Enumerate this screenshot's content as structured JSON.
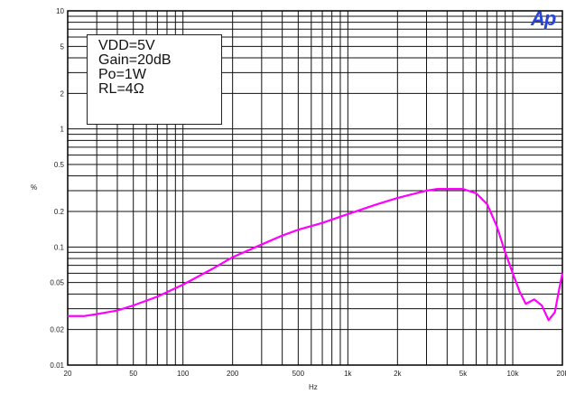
{
  "chart_data": {
    "type": "line",
    "title": "",
    "xlabel": "Hz",
    "ylabel": "%",
    "x_scale": "log",
    "y_scale": "log",
    "xlim": [
      20,
      20000
    ],
    "ylim": [
      0.01,
      10
    ],
    "grid": true,
    "x_ticks": [
      20,
      50,
      100,
      200,
      500,
      1000,
      2000,
      5000,
      10000,
      20000
    ],
    "x_tick_labels": [
      "20",
      "50",
      "100",
      "200",
      "500",
      "1k",
      "2k",
      "5k",
      "10k",
      "20k"
    ],
    "y_ticks": [
      0.01,
      0.02,
      0.05,
      0.1,
      0.2,
      0.5,
      1,
      2,
      5,
      10
    ],
    "y_tick_labels": [
      "0.01",
      "0.02",
      "0.05",
      "0.1",
      "0.2",
      "0.5",
      "1",
      "2",
      "5",
      "10"
    ],
    "annotation_lines": [
      "VDD=5V",
      "Gain=20dB",
      "Po=1W",
      "RL=4Ω"
    ],
    "series": [
      {
        "color": "#ff00ff",
        "points": [
          [
            20,
            0.026
          ],
          [
            25,
            0.026
          ],
          [
            30,
            0.027
          ],
          [
            40,
            0.029
          ],
          [
            50,
            0.032
          ],
          [
            70,
            0.038
          ],
          [
            100,
            0.048
          ],
          [
            150,
            0.065
          ],
          [
            200,
            0.082
          ],
          [
            300,
            0.105
          ],
          [
            400,
            0.125
          ],
          [
            500,
            0.14
          ],
          [
            700,
            0.16
          ],
          [
            1000,
            0.19
          ],
          [
            1500,
            0.23
          ],
          [
            2000,
            0.26
          ],
          [
            3000,
            0.3
          ],
          [
            3500,
            0.31
          ],
          [
            4000,
            0.31
          ],
          [
            5000,
            0.31
          ],
          [
            6000,
            0.285
          ],
          [
            7000,
            0.23
          ],
          [
            8000,
            0.15
          ],
          [
            9000,
            0.09
          ],
          [
            10000,
            0.06
          ],
          [
            11000,
            0.042
          ],
          [
            12000,
            0.033
          ],
          [
            13500,
            0.036
          ],
          [
            15000,
            0.032
          ],
          [
            16500,
            0.024
          ],
          [
            18000,
            0.028
          ],
          [
            19000,
            0.042
          ],
          [
            20000,
            0.06
          ]
        ]
      }
    ]
  },
  "logo_text": "Ap"
}
